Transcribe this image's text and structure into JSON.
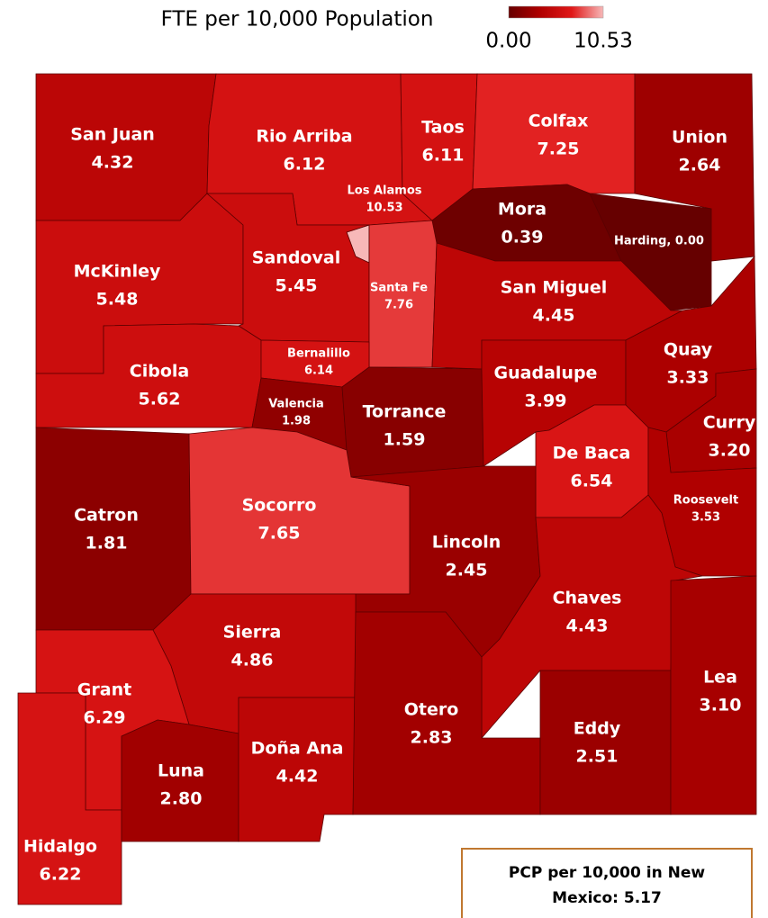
{
  "legend": {
    "title": "FTE per 10,000 Population",
    "min": {
      "value": 0,
      "label": "0.00"
    },
    "max": 10.53,
    "colors": [
      "#660000",
      "#b00000",
      "#e01818",
      "#f7b8b8"
    ]
  },
  "counties": [
    {
      "name": "San Juan",
      "value": 4.32
    },
    {
      "name": "Rio Arriba",
      "value": 6.12
    },
    {
      "name": "Taos",
      "value": 6.11
    },
    {
      "name": "Colfax",
      "value": 7.25
    },
    {
      "name": "Union",
      "value": 2.64
    },
    {
      "name": "Los Alamos",
      "value": 10.53
    },
    {
      "name": "Mora",
      "value": 0.39
    },
    {
      "name": "Harding",
      "value": 0,
      "label": "Harding, 0.00"
    },
    {
      "name": "McKinley",
      "value": 5.48
    },
    {
      "name": "Sandoval",
      "value": 5.45
    },
    {
      "name": "Santa Fe",
      "value": 7.76
    },
    {
      "name": "San Miguel",
      "value": 4.45
    },
    {
      "name": "Cibola",
      "value": 5.62
    },
    {
      "name": "Bernalillo",
      "value": 6.14
    },
    {
      "name": "Valencia",
      "value": 1.98
    },
    {
      "name": "Torrance",
      "value": 1.59
    },
    {
      "name": "Guadalupe",
      "value": 3.99
    },
    {
      "name": "Quay",
      "value": 3.33
    },
    {
      "name": "Curry",
      "value": 3.2,
      "value_label": "3.20"
    },
    {
      "name": "De Baca",
      "value": 6.54
    },
    {
      "name": "Roosevelt",
      "value": 3.53
    },
    {
      "name": "Catron",
      "value": 1.81
    },
    {
      "name": "Socorro",
      "value": 7.65
    },
    {
      "name": "Lincoln",
      "value": 2.45
    },
    {
      "name": "Chaves",
      "value": 4.43
    },
    {
      "name": "Sierra",
      "value": 4.86
    },
    {
      "name": "Grant",
      "value": 6.29
    },
    {
      "name": "Hidalgo",
      "value": 6.22
    },
    {
      "name": "Luna",
      "value": 2.8,
      "value_label": "2.80"
    },
    {
      "name": "Doña Ana",
      "value": 4.42
    },
    {
      "name": "Otero",
      "value": 2.83
    },
    {
      "name": "Eddy",
      "value": 2.51
    },
    {
      "name": "Lea",
      "value": 3.1,
      "value_label": "3.10"
    }
  ],
  "summary": {
    "lines": [
      "PCP per 10,000 in New",
      "Mexico: 5.17"
    ]
  }
}
